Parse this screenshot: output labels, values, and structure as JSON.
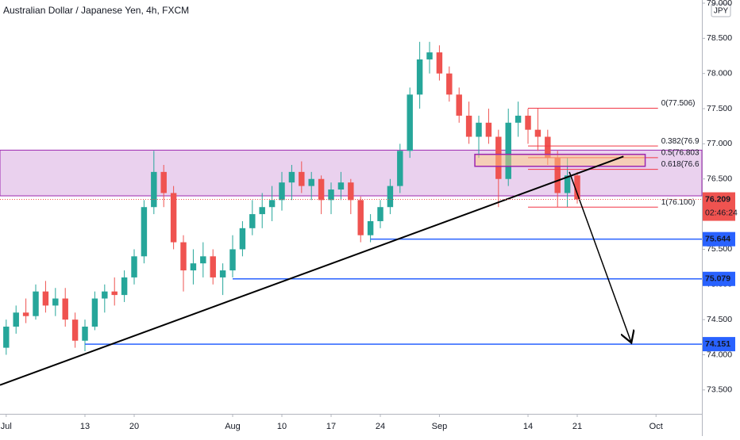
{
  "chart_data": {
    "type": "candlestick",
    "title": "Australian Dollar / Japanese Yen, 4h, FXCM",
    "currency": "JPY",
    "x": [
      0,
      1,
      2,
      3,
      4,
      5,
      6,
      7,
      8,
      9,
      10,
      11,
      12,
      13,
      14,
      15,
      16,
      17,
      18,
      19,
      20,
      21,
      22,
      23,
      24,
      25,
      26,
      27,
      28,
      29,
      30,
      31,
      32,
      33,
      34,
      35,
      36,
      37,
      38,
      39,
      40,
      41,
      42,
      43,
      44,
      45,
      46,
      47,
      48,
      49,
      50,
      51,
      52,
      53,
      54,
      55,
      56,
      57,
      58
    ],
    "open": [
      74.1,
      74.4,
      74.6,
      74.55,
      74.9,
      74.7,
      74.8,
      74.5,
      74.2,
      74.4,
      74.8,
      74.9,
      74.85,
      75.1,
      75.4,
      76.1,
      76.6,
      76.3,
      75.6,
      75.2,
      75.3,
      75.4,
      75.1,
      75.2,
      75.5,
      75.8,
      76.0,
      76.1,
      76.2,
      76.45,
      76.6,
      76.4,
      76.5,
      76.2,
      76.35,
      76.45,
      76.2,
      75.7,
      75.9,
      76.1,
      76.4,
      76.9,
      77.7,
      78.2,
      78.3,
      78.0,
      77.7,
      77.4,
      77.1,
      77.3,
      77.1,
      76.5,
      77.3,
      77.4,
      77.2,
      77.1,
      76.8,
      76.3,
      76.55
    ],
    "high": [
      74.5,
      74.7,
      74.8,
      75.0,
      75.05,
      74.95,
      74.95,
      74.6,
      74.5,
      74.9,
      75.0,
      75.1,
      75.2,
      75.5,
      76.2,
      76.9,
      76.7,
      76.4,
      75.7,
      75.5,
      75.6,
      75.5,
      75.3,
      75.7,
      75.9,
      76.2,
      76.3,
      76.4,
      76.6,
      76.7,
      76.75,
      76.6,
      76.55,
      76.45,
      76.6,
      76.5,
      76.25,
      76.0,
      76.2,
      76.5,
      77.0,
      77.8,
      78.45,
      78.45,
      78.4,
      78.1,
      77.8,
      77.6,
      77.4,
      77.5,
      77.2,
      77.5,
      77.6,
      77.5,
      77.5,
      77.2,
      76.9,
      76.8,
      76.6
    ],
    "low": [
      74.0,
      74.3,
      74.45,
      74.5,
      74.6,
      74.55,
      74.4,
      74.1,
      74.05,
      74.35,
      74.6,
      74.7,
      74.75,
      75.0,
      75.3,
      76.0,
      76.1,
      75.5,
      74.9,
      75.0,
      75.1,
      75.0,
      74.85,
      75.1,
      75.4,
      75.7,
      75.8,
      75.9,
      76.05,
      76.2,
      76.3,
      76.2,
      76.0,
      76.0,
      76.2,
      76.0,
      75.6,
      75.6,
      75.8,
      76.0,
      76.3,
      76.8,
      77.5,
      78.0,
      77.9,
      77.6,
      77.3,
      77.0,
      76.8,
      77.0,
      76.1,
      76.4,
      77.1,
      77.0,
      76.9,
      76.7,
      76.1,
      76.1,
      76.15
    ],
    "close": [
      74.4,
      74.6,
      74.55,
      74.9,
      74.7,
      74.8,
      74.5,
      74.2,
      74.4,
      74.8,
      74.9,
      74.85,
      75.1,
      75.4,
      76.1,
      76.6,
      76.3,
      75.6,
      75.2,
      75.3,
      75.4,
      75.1,
      75.2,
      75.5,
      75.8,
      76.0,
      76.1,
      76.2,
      76.45,
      76.6,
      76.4,
      76.5,
      76.2,
      76.35,
      76.45,
      76.2,
      75.7,
      75.9,
      76.1,
      76.4,
      76.9,
      77.7,
      78.2,
      78.3,
      78.0,
      77.7,
      77.4,
      77.1,
      77.3,
      77.1,
      76.5,
      77.3,
      77.4,
      77.2,
      77.1,
      76.8,
      76.3,
      76.55,
      76.209
    ],
    "up_color": "#26a69a",
    "down_color": "#ef5350",
    "xlim": [
      -0.63,
      70.66
    ],
    "ylim": [
      73.16,
      79.045
    ],
    "xticks": [
      {
        "value": 0,
        "label": "Jul"
      },
      {
        "value": 8,
        "label": "13"
      },
      {
        "value": 13,
        "label": "20"
      },
      {
        "value": 23,
        "label": "Aug"
      },
      {
        "value": 28,
        "label": "10"
      },
      {
        "value": 33,
        "label": "17"
      },
      {
        "value": 38,
        "label": "24"
      },
      {
        "value": 44,
        "label": "Sep"
      },
      {
        "value": 53,
        "label": "14"
      },
      {
        "value": 58,
        "label": "21"
      },
      {
        "value": 66,
        "label": "Oct"
      }
    ],
    "yticks": [
      {
        "value": 79,
        "label": "79.000"
      },
      {
        "value": 78.5,
        "label": "78.500"
      },
      {
        "value": 78,
        "label": "78.000"
      },
      {
        "value": 77.5,
        "label": "77.500"
      },
      {
        "value": 77,
        "label": "77.000"
      },
      {
        "value": 76.5,
        "label": "76.500"
      },
      {
        "value": 76,
        "label": "76.000"
      },
      {
        "value": 75.5,
        "label": "75.500"
      },
      {
        "value": 75,
        "label": "75.000"
      },
      {
        "value": 74.5,
        "label": "74.500"
      },
      {
        "value": 74,
        "label": "74.000"
      },
      {
        "value": 73.5,
        "label": "73.500"
      }
    ],
    "zone": {
      "ylim": [
        76.26,
        76.91
      ],
      "color": "#e1bee7"
    },
    "levels": [
      {
        "value": 75.644,
        "label": "75.644",
        "start": 37
      },
      {
        "value": 75.079,
        "label": "75.079",
        "start": 23
      },
      {
        "value": 74.151,
        "label": "74.151",
        "start": 8
      }
    ],
    "level_color": "#2962ff",
    "last_price": {
      "value": 76.209,
      "label": "76.209"
    },
    "countdown": "02:46:24",
    "fib_x": [
      53,
      66.2
    ],
    "fib": [
      {
        "value": 77.506,
        "label": "0(77.506)"
      },
      {
        "value": 76.969,
        "label": "0.382(76.9"
      },
      {
        "value": 76.803,
        "label": "0.5(76.803"
      },
      {
        "value": 76.637,
        "label": "0.618(76.6"
      },
      {
        "value": 76.1,
        "label": "1(76.100)"
      }
    ],
    "fib_color": "#f23645",
    "box": {
      "x": [
        47.6,
        64.9
      ],
      "y": [
        76.68,
        76.85
      ]
    },
    "trendline": {
      "x": [
        -0.63,
        62.7
      ],
      "y": [
        73.57,
        76.82
      ]
    },
    "arrow": {
      "x": [
        57.2,
        63.5
      ],
      "y": [
        76.6,
        74.17
      ]
    }
  }
}
